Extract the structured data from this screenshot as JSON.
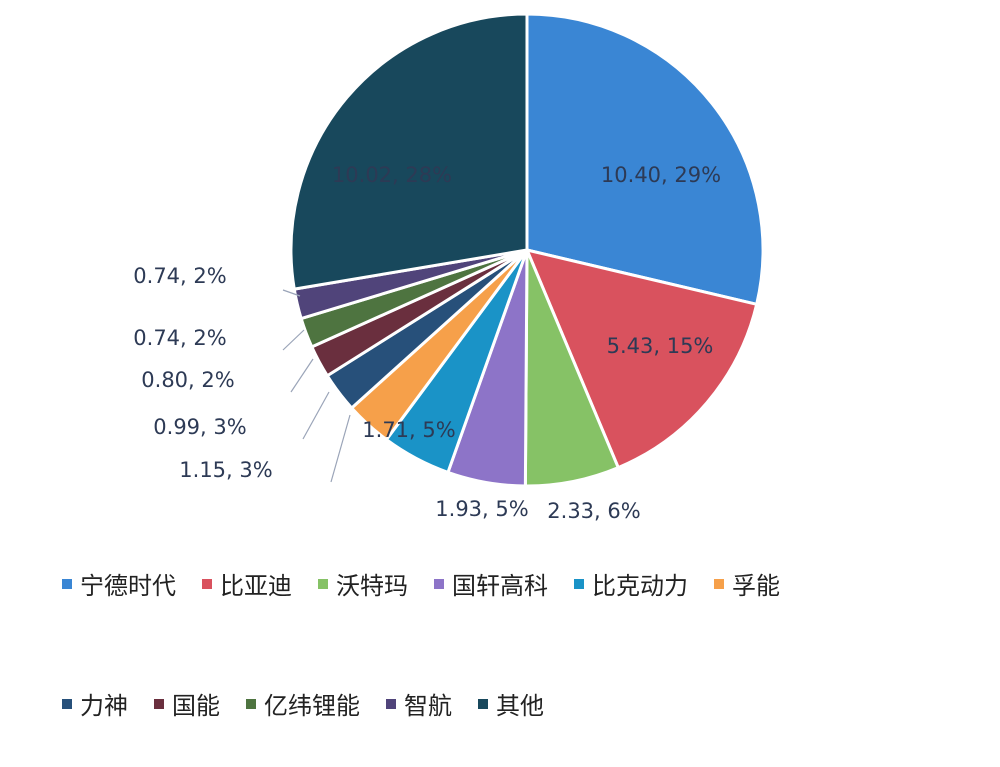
{
  "chart_data": {
    "type": "pie",
    "title": "",
    "legend_position": "bottom",
    "slices": [
      {
        "name": "宁德时代",
        "value": 10.4,
        "percent": 29,
        "label": "10.40, 29%",
        "color": "#3a86d4"
      },
      {
        "name": "比亚迪",
        "value": 5.43,
        "percent": 15,
        "label": "5.43, 15%",
        "color": "#d9525e"
      },
      {
        "name": "沃特玛",
        "value": 2.33,
        "percent": 6,
        "label": "2.33, 6%",
        "color": "#86c266"
      },
      {
        "name": "国轩高科",
        "value": 1.93,
        "percent": 5,
        "label": "1.93, 5%",
        "color": "#8d74c8"
      },
      {
        "name": "比克动力",
        "value": 1.71,
        "percent": 5,
        "label": "1.71, 5%",
        "color": "#1a93c7"
      },
      {
        "name": "孚能",
        "value": 1.15,
        "percent": 3,
        "label": "1.15, 3%",
        "color": "#f6a04a"
      },
      {
        "name": "力神",
        "value": 0.99,
        "percent": 3,
        "label": "0.99, 3%",
        "color": "#27507a"
      },
      {
        "name": "国能",
        "value": 0.8,
        "percent": 2,
        "label": "0.80, 2%",
        "color": "#6a2f3e"
      },
      {
        "name": "亿纬锂能",
        "value": 0.74,
        "percent": 2,
        "label": "0.74, 2%",
        "color": "#4e7440"
      },
      {
        "name": "智航",
        "value": 0.74,
        "percent": 2,
        "label": "0.74, 2%",
        "color": "#50447a"
      },
      {
        "name": "其他",
        "value": 10.02,
        "percent": 28,
        "label": "10.02, 28%",
        "color": "#18485c"
      }
    ]
  }
}
